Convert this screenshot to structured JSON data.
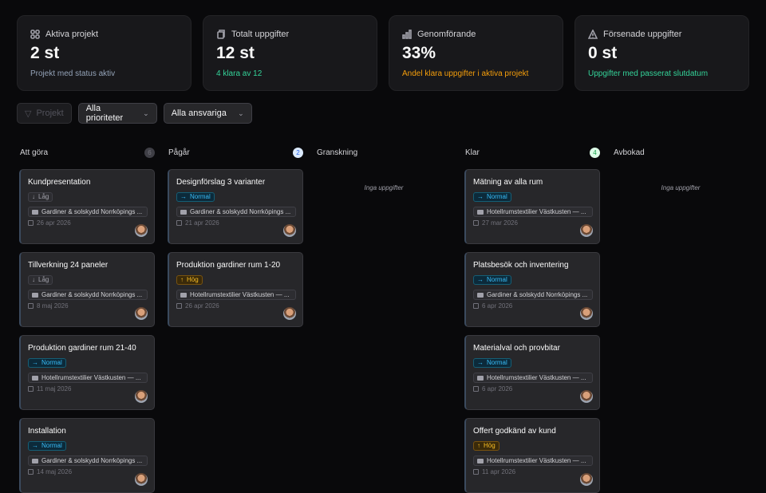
{
  "stats": [
    {
      "icon": "grid-icon",
      "label": "Aktiva projekt",
      "value": "2 st",
      "sub": "Projekt med status aktiv",
      "sub_color": "#94a3b8"
    },
    {
      "icon": "clipboard-icon",
      "label": "Totalt uppgifter",
      "value": "12 st",
      "sub": "4 klara av 12",
      "sub_color": "#34d399"
    },
    {
      "icon": "bar-chart-icon",
      "label": "Genomförande",
      "value": "33%",
      "sub": "Andel klara uppgifter i aktiva projekt",
      "sub_color": "#f59e0b"
    },
    {
      "icon": "warning-icon",
      "label": "Försenade uppgifter",
      "value": "0 st",
      "sub": "Uppgifter med passerat slutdatum",
      "sub_color": "#34d399"
    }
  ],
  "filters": {
    "project": "Projekt",
    "priority": "Alla prioriteter",
    "assignee": "Alla ansvariga"
  },
  "empty_text": "Inga uppgifter",
  "columns": [
    {
      "title": "Att göra",
      "count": "6",
      "tasks": [
        {
          "title": "Kundpresentation",
          "priority": "Låg",
          "project": "Gardiner & solskydd Norrköpings ...",
          "date": "26 apr 2026"
        },
        {
          "title": "Tillverkning 24 paneler",
          "priority": "Låg",
          "project": "Gardiner & solskydd Norrköpings ...",
          "date": "8 maj 2026"
        },
        {
          "title": "Produktion gardiner rum 21-40",
          "priority": "Normal",
          "project": "Hotellrumstextilier Västkusten — ...",
          "date": "11 maj 2026"
        },
        {
          "title": "Installation",
          "priority": "Normal",
          "project": "Gardiner & solskydd Norrköpings ...",
          "date": "14 maj 2026"
        }
      ]
    },
    {
      "title": "Pågår",
      "count": "2",
      "tasks": [
        {
          "title": "Designförslag 3 varianter",
          "priority": "Normal",
          "project": "Gardiner & solskydd Norrköpings ...",
          "date": "21 apr 2026"
        },
        {
          "title": "Produktion gardiner rum 1-20",
          "priority": "Hög",
          "project": "Hotellrumstextilier Västkusten — ...",
          "date": "26 apr 2026"
        }
      ]
    },
    {
      "title": "Granskning",
      "count": null,
      "tasks": []
    },
    {
      "title": "Klar",
      "count": "4",
      "tasks": [
        {
          "title": "Mätning av alla rum",
          "priority": "Normal",
          "project": "Hotellrumstextilier Västkusten — ...",
          "date": "27 mar 2026"
        },
        {
          "title": "Platsbesök och inventering",
          "priority": "Normal",
          "project": "Gardiner & solskydd Norrköpings ...",
          "date": "6 apr 2026"
        },
        {
          "title": "Materialval och provbitar",
          "priority": "Normal",
          "project": "Hotellrumstextilier Västkusten — ...",
          "date": "6 apr 2026"
        },
        {
          "title": "Offert godkänd av kund",
          "priority": "Hög",
          "project": "Hotellrumstextilier Västkusten — ...",
          "date": "11 apr 2026"
        }
      ]
    },
    {
      "title": "Avbokad",
      "count": null,
      "tasks": []
    }
  ],
  "colors": {
    "low": "#a1a1aa",
    "normal": "#38bdf8",
    "high": "#fbbf24"
  }
}
